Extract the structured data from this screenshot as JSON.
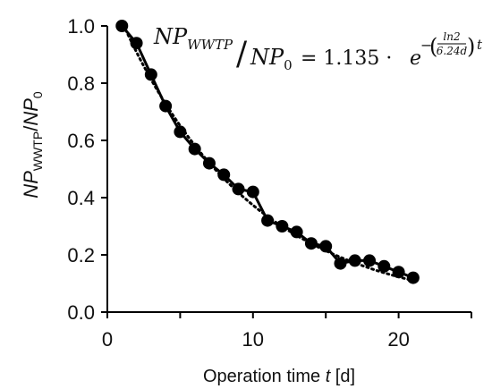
{
  "chart_data": {
    "type": "line",
    "xlabel": {
      "prefix": "Operation time ",
      "var": "t",
      "suffix": " [d]"
    },
    "ylabel": {
      "num": "NP",
      "num_sub": "WWTP",
      "slash": "/",
      "den": "NP",
      "den_sub": "0"
    },
    "xlim": [
      0,
      25
    ],
    "ylim": [
      0,
      1.0
    ],
    "x_ticks": [
      0,
      10,
      20
    ],
    "x_tick_labels": [
      "0",
      "10",
      "20"
    ],
    "y_ticks": [
      0.0,
      0.2,
      0.4,
      0.6,
      0.8,
      1.0
    ],
    "y_tick_labels": [
      "0.0",
      "0.2",
      "0.4",
      "0.6",
      "0.8",
      "1.0"
    ],
    "grid": false,
    "series": [
      {
        "style": "solid line with filled circle markers",
        "x": [
          1,
          2,
          3,
          4,
          5,
          6,
          7,
          8,
          9,
          10,
          11,
          12,
          13,
          14,
          15,
          16,
          17,
          18,
          19,
          20,
          21
        ],
        "y": [
          1.0,
          0.94,
          0.83,
          0.72,
          0.63,
          0.57,
          0.52,
          0.48,
          0.43,
          0.42,
          0.32,
          0.3,
          0.28,
          0.24,
          0.23,
          0.17,
          0.18,
          0.18,
          0.16,
          0.14,
          0.12
        ]
      },
      {
        "style": "dotted exponential fit",
        "fit": {
          "a": 1.135,
          "half_life_days": 6.24
        }
      }
    ],
    "annotation": {
      "lhs_num": "NP",
      "lhs_num_sub": "WWTP",
      "lhs_slash": "/",
      "lhs_den": "NP",
      "lhs_den_sub": "0",
      "rhs": "= 1.135 ·",
      "e": "e",
      "exp_minus": "−",
      "frac_num": "ln2",
      "frac_den": "6.24d",
      "exp_t": "t"
    },
    "colors": {
      "series": "#000000",
      "axis": "#000000"
    }
  }
}
